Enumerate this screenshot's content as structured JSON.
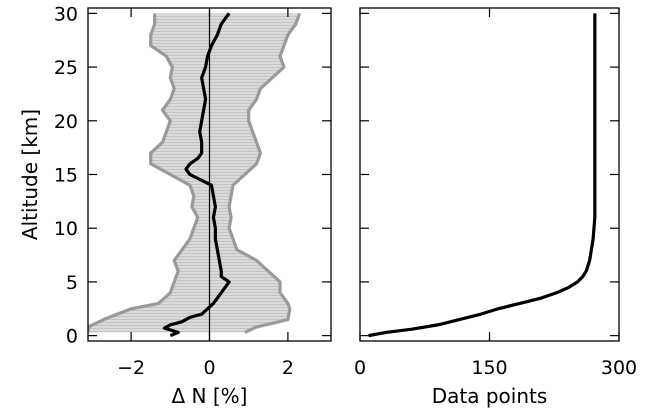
{
  "chart_data": [
    {
      "type": "line",
      "xlabel": "Δ N [%]",
      "ylabel": "Altitude [km]",
      "xlim": [
        -3.1,
        3.1
      ],
      "ylim": [
        -0.5,
        30.5
      ],
      "xticks": [
        -2,
        0,
        2
      ],
      "xtick_labels": [
        "−2",
        "0",
        "2"
      ],
      "yticks": [
        0,
        5,
        10,
        15,
        20,
        25,
        30
      ],
      "ytick_labels": [
        "0",
        "5",
        "10",
        "15",
        "20",
        "25",
        "30"
      ],
      "grid": false,
      "reference_line_x": 0,
      "band": {
        "style": "light-grey hatched fill with grey edges",
        "y": [
          0.3,
          0.8,
          1.5,
          2.5,
          3.0,
          4.0,
          5.0,
          6.0,
          7.0,
          8.0,
          9.0,
          10.0,
          11.0,
          12.0,
          13.0,
          14.0,
          15.0,
          16.0,
          17.0,
          18.0,
          19.0,
          20.0,
          21.0,
          22.0,
          23.0,
          24.0,
          25.0,
          26.0,
          27.0,
          28.0,
          29.0,
          30.0
        ],
        "lower": [
          -3.1,
          -3.1,
          -2.7,
          -2.0,
          -1.3,
          -1.0,
          -0.9,
          -0.8,
          -0.9,
          -0.7,
          -0.5,
          -0.4,
          -0.3,
          -0.45,
          -0.4,
          -0.5,
          -1.0,
          -1.5,
          -1.5,
          -1.2,
          -1.1,
          -1.0,
          -1.2,
          -1.0,
          -0.9,
          -1.0,
          -0.95,
          -1.1,
          -1.5,
          -1.5,
          -1.4,
          -1.4
        ],
        "upper": [
          0.9,
          1.2,
          2.0,
          2.05,
          2.0,
          1.8,
          1.8,
          1.5,
          1.2,
          0.7,
          0.6,
          0.5,
          0.55,
          0.5,
          0.55,
          0.6,
          0.9,
          1.2,
          1.3,
          1.2,
          1.1,
          1.0,
          1.0,
          1.2,
          1.3,
          1.6,
          1.9,
          1.8,
          1.9,
          2.0,
          2.2,
          2.3
        ]
      },
      "series": [
        {
          "color": "#000000",
          "y": [
            0.0,
            0.3,
            0.7,
            1.0,
            1.3,
            1.7,
            2.0,
            3.0,
            4.0,
            5.0,
            5.5,
            6.0,
            7.0,
            8.0,
            9.0,
            10.0,
            11.0,
            12.0,
            13.0,
            14.0,
            15.0,
            15.5,
            16.0,
            16.5,
            17.0,
            18.0,
            19.0,
            20.0,
            21.0,
            22.0,
            23.0,
            24.0,
            25.0,
            26.0,
            27.0,
            28.0,
            29.0,
            29.5,
            30.0
          ],
          "x": [
            -1.0,
            -0.8,
            -1.15,
            -1.0,
            -0.7,
            -0.5,
            -0.2,
            0.1,
            0.3,
            0.5,
            0.3,
            0.3,
            0.25,
            0.2,
            0.15,
            0.15,
            0.1,
            0.15,
            0.1,
            0.05,
            -0.5,
            -0.6,
            -0.5,
            -0.3,
            -0.2,
            -0.2,
            -0.25,
            -0.2,
            -0.15,
            -0.1,
            -0.15,
            -0.2,
            -0.1,
            -0.05,
            0.05,
            0.2,
            0.3,
            0.4,
            0.5
          ]
        }
      ]
    },
    {
      "type": "line",
      "xlabel": "Data points",
      "ylabel": "",
      "xlim": [
        0,
        300
      ],
      "ylim": [
        -0.5,
        30.5
      ],
      "xticks": [
        0,
        150,
        300
      ],
      "xtick_labels": [
        "0",
        "150",
        "300"
      ],
      "yticks": [
        0,
        5,
        10,
        15,
        20,
        25,
        30
      ],
      "ytick_labels": [],
      "grid": false,
      "series": [
        {
          "color": "#000000",
          "y": [
            0.0,
            0.3,
            0.6,
            1.0,
            1.5,
            2.0,
            2.5,
            3.0,
            3.5,
            4.0,
            4.5,
            5.0,
            5.5,
            6.0,
            7.0,
            8.0,
            9.0,
            10.0,
            11.0,
            12.0,
            15.0,
            20.0,
            25.0,
            30.0
          ],
          "x": [
            10,
            30,
            60,
            90,
            115,
            140,
            160,
            185,
            210,
            228,
            242,
            252,
            258,
            262,
            266,
            268,
            270,
            271,
            272,
            272,
            272,
            272,
            272,
            272
          ]
        }
      ]
    }
  ]
}
